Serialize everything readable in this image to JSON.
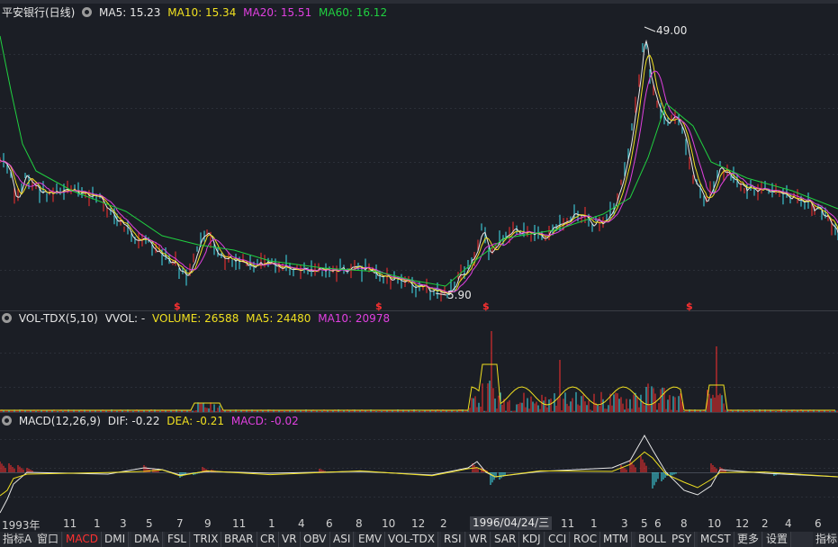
{
  "main_legend": {
    "title": "平安银行(日线)",
    "ma5": "MA5: 15.23",
    "ma10": "MA10: 15.34",
    "ma20": "MA20: 15.51",
    "ma60": "MA60: 16.12"
  },
  "vol_legend": {
    "title": "VOL-TDX(5,10)",
    "vvol": "VVOL: -",
    "volume": "VOLUME: 26588",
    "ma5": "MA5: 24480",
    "ma10": "MA10: 20978"
  },
  "macd_legend": {
    "title": "MACD(12,26,9)",
    "dif": "DIF: -0.22",
    "dea": "DEA: -0.21",
    "macd": "MACD: -0.02"
  },
  "price_annotations": {
    "high": "49.00",
    "low": "5.90"
  },
  "signal_marker": "$",
  "time_axis": {
    "labels": [
      "1993年",
      "11",
      "1",
      "3",
      "5",
      "7",
      "9",
      "11",
      "1",
      "4",
      "6",
      "8",
      "10",
      "12",
      "2",
      "1996/04/24/三",
      "11",
      "1",
      "3",
      "5",
      "6",
      "8",
      "10",
      "12",
      "2",
      "4",
      "6"
    ]
  },
  "tabs": [
    "指标A",
    "窗口",
    "MACD",
    "DMI",
    "DMA",
    "FSL",
    "TRIX",
    "BRAR",
    "CR",
    "VR",
    "OBV",
    "ASI",
    "EMV",
    "VOL-TDX",
    "RSI",
    "WR",
    "SAR",
    "KDJ",
    "CCI",
    "ROC",
    "MTM",
    "BOLL",
    "PSY",
    "MCST",
    "更多",
    "设置",
    "指标"
  ],
  "active_tab": "MACD",
  "colors": {
    "background": "#1b1e25",
    "up": "#ff3030",
    "down": "#40e0f0",
    "ma5": "#e6e6e6",
    "ma10": "#f0e020",
    "ma20": "#e040e0",
    "ma60": "#20d040"
  },
  "icons": {
    "indicator_settings": "gear-icon"
  }
}
